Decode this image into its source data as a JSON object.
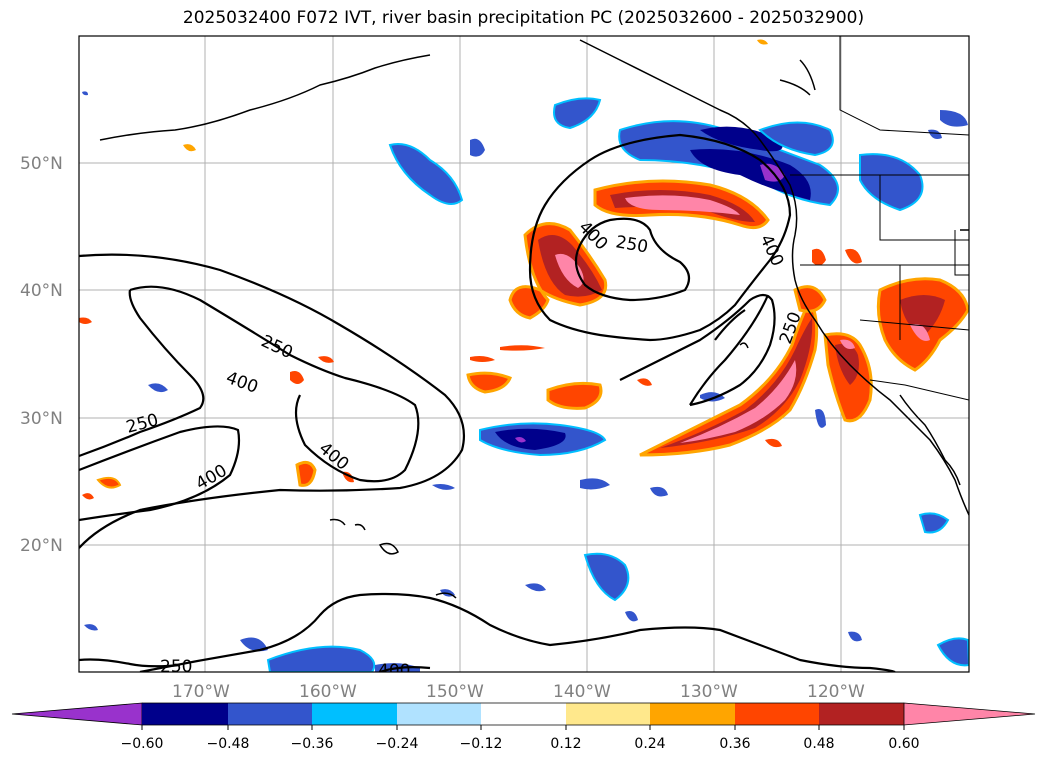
{
  "title": "2025032400 F072 IVT, river basin precipitation PC (2025032600 - 2025032900)",
  "lat_labels": [
    "50°N",
    "40°N",
    "30°N",
    "20°N"
  ],
  "lon_labels": [
    "170°W",
    "160°W",
    "150°W",
    "140°W",
    "130°W",
    "120°W"
  ],
  "colorbar": {
    "ticks": [
      "−0.60",
      "−0.48",
      "−0.36",
      "−0.24",
      "−0.12",
      "0.12",
      "0.24",
      "0.36",
      "0.48",
      "0.60"
    ],
    "colors": [
      "#9932cc",
      "#00008b",
      "#3355cc",
      "#00bfff",
      "#b0e2ff",
      "#ffffff",
      "#ffe88c",
      "#ffa500",
      "#ff4500",
      "#b22222",
      "#ff85a8"
    ]
  },
  "contour_labels": {
    "c1": "250",
    "c2": "400",
    "c3": "250",
    "c4": "400",
    "c5": "400",
    "c6": "400",
    "c7": "250",
    "c8": "400",
    "c9": "250",
    "c10": "250",
    "c11": "400"
  }
}
